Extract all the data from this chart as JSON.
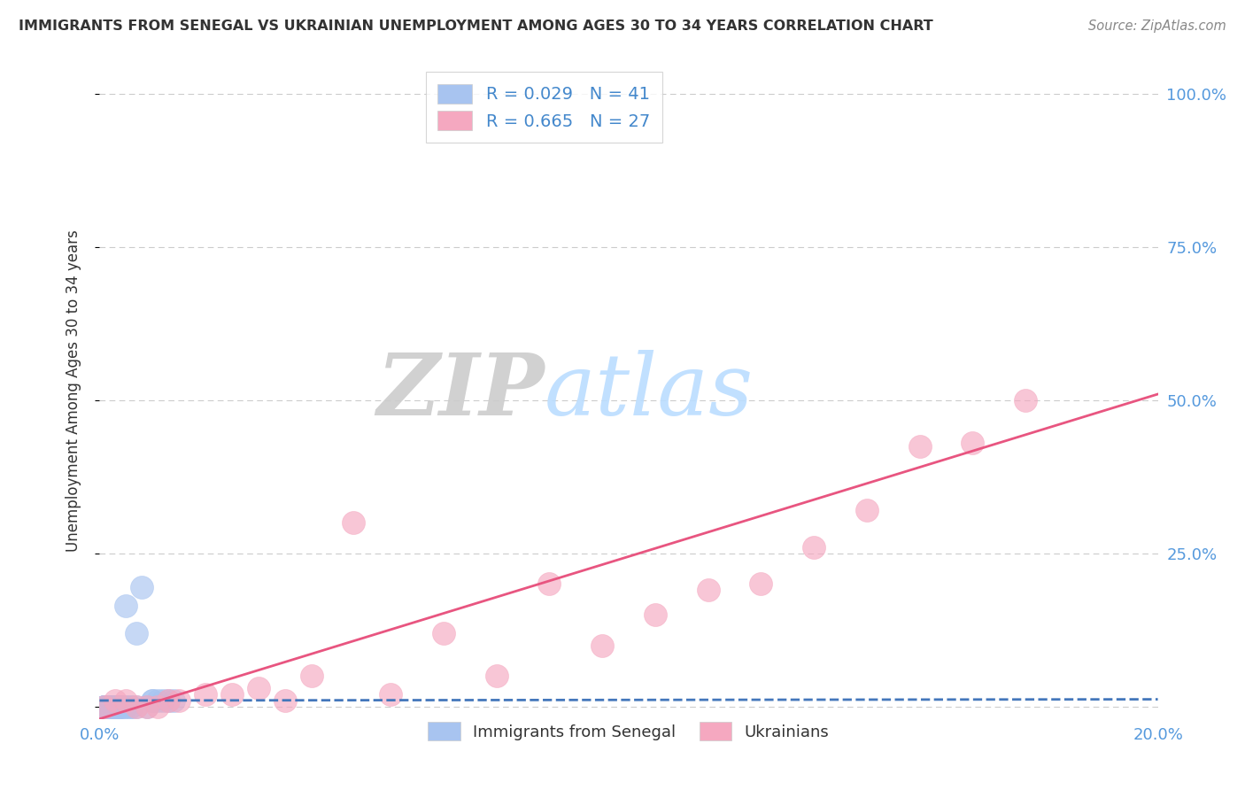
{
  "title": "IMMIGRANTS FROM SENEGAL VS UKRAINIAN UNEMPLOYMENT AMONG AGES 30 TO 34 YEARS CORRELATION CHART",
  "source": "Source: ZipAtlas.com",
  "ylabel": "Unemployment Among Ages 30 to 34 years",
  "xlabel": "",
  "xlim": [
    0.0,
    0.2
  ],
  "ylim": [
    -0.02,
    1.05
  ],
  "xtick_positions": [
    0.0,
    0.05,
    0.1,
    0.15,
    0.2
  ],
  "xticklabels": [
    "0.0%",
    "",
    "",
    "",
    "20.0%"
  ],
  "ytick_positions": [
    0.0,
    0.25,
    0.5,
    0.75,
    1.0
  ],
  "ytick_labels_right": [
    "",
    "25.0%",
    "50.0%",
    "75.0%",
    "100.0%"
  ],
  "legend_label1": "Immigrants from Senegal",
  "legend_label2": "Ukrainians",
  "R1": 0.029,
  "N1": 41,
  "R2": 0.665,
  "N2": 27,
  "color1": "#A8C4F0",
  "color2": "#F5A8C0",
  "trendline1_color": "#4477BB",
  "trendline2_color": "#E85580",
  "watermark_zip": "ZIP",
  "watermark_atlas": "atlas",
  "background_color": "#FFFFFF",
  "senegal_x": [
    0.001,
    0.001,
    0.001,
    0.001,
    0.001,
    0.002,
    0.002,
    0.002,
    0.002,
    0.003,
    0.003,
    0.003,
    0.003,
    0.003,
    0.004,
    0.004,
    0.004,
    0.005,
    0.005,
    0.005,
    0.006,
    0.006,
    0.007,
    0.007,
    0.008,
    0.009,
    0.01,
    0.01,
    0.011,
    0.012,
    0.013,
    0.014,
    0.001,
    0.002,
    0.003,
    0.002,
    0.001,
    0.003,
    0.001,
    0.002,
    0.004
  ],
  "senegal_y": [
    0.0,
    0.0,
    0.0,
    0.0,
    0.0,
    0.0,
    0.0,
    0.0,
    0.0,
    0.0,
    0.0,
    0.0,
    0.0,
    0.0,
    0.0,
    0.0,
    0.0,
    0.0,
    0.0,
    0.165,
    0.0,
    0.0,
    0.12,
    0.0,
    0.195,
    0.0,
    0.01,
    0.01,
    0.01,
    0.01,
    0.01,
    0.01,
    0.0,
    0.0,
    0.0,
    0.0,
    0.0,
    0.0,
    0.0,
    0.0,
    0.0
  ],
  "ukrainian_x": [
    0.001,
    0.003,
    0.005,
    0.007,
    0.009,
    0.011,
    0.013,
    0.015,
    0.02,
    0.025,
    0.03,
    0.035,
    0.04,
    0.048,
    0.055,
    0.065,
    0.075,
    0.085,
    0.095,
    0.105,
    0.115,
    0.125,
    0.135,
    0.145,
    0.155,
    0.165,
    0.175
  ],
  "ukrainian_y": [
    0.0,
    0.01,
    0.01,
    0.0,
    0.0,
    0.0,
    0.01,
    0.01,
    0.02,
    0.02,
    0.03,
    0.01,
    0.05,
    0.3,
    0.02,
    0.12,
    0.05,
    0.2,
    0.1,
    0.15,
    0.19,
    0.2,
    0.26,
    0.32,
    0.425,
    0.43,
    0.5
  ],
  "trendline1_x": [
    0.0,
    0.2
  ],
  "trendline1_y": [
    0.01,
    0.012
  ],
  "trendline2_x": [
    0.0,
    0.2
  ],
  "trendline2_y": [
    -0.02,
    0.51
  ]
}
